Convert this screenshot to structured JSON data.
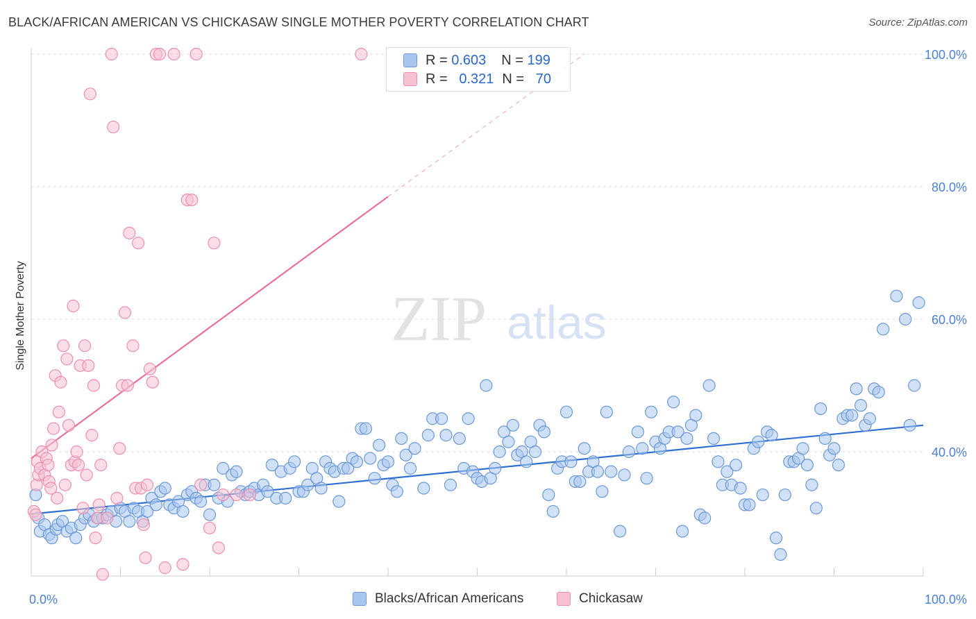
{
  "title": "BLACK/AFRICAN AMERICAN VS CHICKASAW SINGLE MOTHER POVERTY CORRELATION CHART",
  "source": "Source: ZipAtlas.com",
  "watermark": {
    "zip": "ZIP",
    "atlas": "atlas"
  },
  "colors": {
    "blue_fill": "#a9c6ef",
    "blue_stroke": "#6c98d8",
    "blue_line": "#2f6fd0",
    "pink_fill": "#f6c1d1",
    "pink_stroke": "#ec8fae",
    "pink_line": "#e8719a",
    "axis_text": "#4a7fd6",
    "grid": "#dddddd"
  },
  "legend": {
    "series1": {
      "r_label": "R =",
      "r_value": "0.603",
      "n_label": "N =",
      "n_value": "199"
    },
    "series2": {
      "r_label": "R =",
      "r_value": "0.321",
      "n_label": "N =",
      "n_value": "70"
    }
  },
  "bottom_legend": {
    "series1": "Blacks/African Americans",
    "series2": "Chickasaw"
  },
  "chart_data": {
    "type": "scatter",
    "title": "BLACK/AFRICAN AMERICAN VS CHICKASAW SINGLE MOTHER POVERTY CORRELATION CHART",
    "xlabel": "",
    "ylabel": "Single Mother Poverty",
    "xlim": [
      0,
      100
    ],
    "ylim": [
      21,
      102
    ],
    "x_tick_labels": [
      "0.0%",
      "100.0%"
    ],
    "y_tick_labels": [
      "40.0%",
      "60.0%",
      "80.0%",
      "100.0%"
    ],
    "y_ticks": [
      40,
      60,
      80,
      100
    ],
    "grid": true,
    "legend_position": "top-center",
    "series": [
      {
        "name": "Blacks/African Americans",
        "r": 0.603,
        "n": 199,
        "trend": {
          "x": [
            0,
            100
          ],
          "y": [
            30.6,
            44.0
          ]
        },
        "points": [
          [
            0.5,
            33.5
          ],
          [
            0.8,
            30
          ],
          [
            1,
            28
          ],
          [
            1.5,
            29
          ],
          [
            2,
            27.5
          ],
          [
            2.3,
            27
          ],
          [
            2.8,
            28.3
          ],
          [
            3,
            29
          ],
          [
            3.5,
            29.5
          ],
          [
            4,
            28
          ],
          [
            4.5,
            28.5
          ],
          [
            5,
            27
          ],
          [
            5.5,
            29
          ],
          [
            6,
            30
          ],
          [
            6.5,
            30.5
          ],
          [
            7,
            29.5
          ],
          [
            7.5,
            30
          ],
          [
            8,
            30
          ],
          [
            8.5,
            30.5
          ],
          [
            9,
            31
          ],
          [
            9.5,
            29.5
          ],
          [
            10,
            31.5
          ],
          [
            10.5,
            31
          ],
          [
            11,
            29.5
          ],
          [
            11.5,
            31.5
          ],
          [
            12,
            31
          ],
          [
            12.5,
            29.5
          ],
          [
            13,
            31
          ],
          [
            13.5,
            33
          ],
          [
            14,
            32
          ],
          [
            14.5,
            34
          ],
          [
            15,
            34.5
          ],
          [
            15.5,
            32
          ],
          [
            16,
            31.5
          ],
          [
            16.5,
            32.5
          ],
          [
            17,
            31
          ],
          [
            17.5,
            33.5
          ],
          [
            18,
            34
          ],
          [
            18.5,
            33
          ],
          [
            19,
            32.5
          ],
          [
            19.5,
            35
          ],
          [
            20,
            30.5
          ],
          [
            20.5,
            35
          ],
          [
            21,
            33
          ],
          [
            21.5,
            37.5
          ],
          [
            22,
            32.5
          ],
          [
            22.5,
            36.5
          ],
          [
            23,
            37
          ],
          [
            23.5,
            34
          ],
          [
            24,
            33.5
          ],
          [
            24.5,
            34
          ],
          [
            25,
            34.5
          ],
          [
            25.5,
            33.5
          ],
          [
            26,
            35
          ],
          [
            26.5,
            34
          ],
          [
            27,
            38
          ],
          [
            27.5,
            33
          ],
          [
            28,
            37
          ],
          [
            28.5,
            33
          ],
          [
            29,
            37.5
          ],
          [
            29.5,
            38.5
          ],
          [
            30,
            34
          ],
          [
            30.5,
            34
          ],
          [
            31,
            35
          ],
          [
            31.5,
            37.5
          ],
          [
            32,
            36
          ],
          [
            32.5,
            34.5
          ],
          [
            33,
            38.5
          ],
          [
            33.5,
            37.5
          ],
          [
            34,
            37
          ],
          [
            34.5,
            32.5
          ],
          [
            35,
            37.5
          ],
          [
            35.5,
            37.5
          ],
          [
            36,
            39
          ],
          [
            36.5,
            38.5
          ],
          [
            37,
            43.5
          ],
          [
            37.5,
            43.5
          ],
          [
            38,
            39
          ],
          [
            38.5,
            36
          ],
          [
            39,
            41
          ],
          [
            39.5,
            38
          ],
          [
            40,
            38.5
          ],
          [
            40.5,
            35
          ],
          [
            41,
            34
          ],
          [
            41.5,
            42
          ],
          [
            42,
            39.5
          ],
          [
            42.5,
            37.5
          ],
          [
            43,
            40.5
          ],
          [
            44,
            34.5
          ],
          [
            44.5,
            42.5
          ],
          [
            45,
            45
          ],
          [
            46,
            45
          ],
          [
            46.5,
            42.5
          ],
          [
            47,
            35
          ],
          [
            48,
            42
          ],
          [
            48.5,
            37.5
          ],
          [
            49,
            45
          ],
          [
            49.5,
            37
          ],
          [
            50,
            36
          ],
          [
            50.5,
            35.5
          ],
          [
            51,
            50
          ],
          [
            51.5,
            36
          ],
          [
            52,
            37.5
          ],
          [
            52.5,
            40
          ],
          [
            53,
            43
          ],
          [
            53.5,
            41.5
          ],
          [
            54,
            44
          ],
          [
            54.5,
            39.5
          ],
          [
            55,
            40
          ],
          [
            55.5,
            38.5
          ],
          [
            56,
            41.5
          ],
          [
            56.5,
            40
          ],
          [
            57,
            44
          ],
          [
            57.5,
            43
          ],
          [
            58,
            33.5
          ],
          [
            58.5,
            31
          ],
          [
            59,
            37.5
          ],
          [
            59.5,
            38.5
          ],
          [
            60,
            46
          ],
          [
            60.5,
            38.5
          ],
          [
            61,
            35.5
          ],
          [
            61.5,
            35.5
          ],
          [
            62,
            40.5
          ],
          [
            62.5,
            37
          ],
          [
            63,
            38.5
          ],
          [
            63.5,
            37
          ],
          [
            64,
            34
          ],
          [
            64.5,
            46
          ],
          [
            65,
            37
          ],
          [
            66,
            28
          ],
          [
            66.5,
            36.5
          ],
          [
            67,
            40
          ],
          [
            68,
            43
          ],
          [
            68.5,
            40.5
          ],
          [
            69,
            36
          ],
          [
            69.5,
            46
          ],
          [
            70,
            41.5
          ],
          [
            70.5,
            40.5
          ],
          [
            71,
            42
          ],
          [
            71.5,
            43
          ],
          [
            72,
            47.5
          ],
          [
            72.5,
            43
          ],
          [
            73,
            28
          ],
          [
            73.5,
            42
          ],
          [
            74,
            44
          ],
          [
            74.5,
            45.5
          ],
          [
            75,
            30.5
          ],
          [
            75.5,
            30
          ],
          [
            76,
            50
          ],
          [
            76.5,
            42
          ],
          [
            77,
            38.5
          ],
          [
            77.5,
            35
          ],
          [
            78,
            37
          ],
          [
            78.5,
            35
          ],
          [
            79,
            38
          ],
          [
            79.5,
            34.5
          ],
          [
            80,
            32
          ],
          [
            80.5,
            32
          ],
          [
            81,
            40.5
          ],
          [
            81.5,
            41.5
          ],
          [
            82,
            33.5
          ],
          [
            82.5,
            43
          ],
          [
            83,
            42.5
          ],
          [
            83.5,
            27
          ],
          [
            84,
            24.5
          ],
          [
            84.5,
            33.5
          ],
          [
            85,
            38.5
          ],
          [
            85.5,
            38.5
          ],
          [
            86,
            39
          ],
          [
            86.5,
            40.5
          ],
          [
            87,
            38
          ],
          [
            87.5,
            35
          ],
          [
            88,
            31.5
          ],
          [
            88.5,
            46.5
          ],
          [
            89,
            42
          ],
          [
            89.5,
            39.5
          ],
          [
            90,
            40.5
          ],
          [
            90.5,
            38
          ],
          [
            91,
            45
          ],
          [
            91.5,
            45.5
          ],
          [
            92,
            45.5
          ],
          [
            92.5,
            49.5
          ],
          [
            93,
            47
          ],
          [
            93.5,
            44
          ],
          [
            94,
            45
          ],
          [
            94.5,
            49.5
          ],
          [
            95,
            49
          ],
          [
            95.5,
            58.5
          ],
          [
            97,
            63.5
          ],
          [
            98,
            60
          ],
          [
            98.5,
            44
          ],
          [
            99,
            50
          ],
          [
            99.5,
            62.5
          ]
        ]
      },
      {
        "name": "Chickasaw",
        "r": 0.321,
        "n": 70,
        "trend": {
          "x": [
            0,
            40
          ],
          "y": [
            39.0,
            78.5
          ],
          "dash_to": {
            "x": 62,
            "y": 100
          }
        },
        "points": [
          [
            0.3,
            31
          ],
          [
            0.5,
            30.5
          ],
          [
            0.6,
            35
          ],
          [
            0.7,
            38.5
          ],
          [
            0.8,
            36.5
          ],
          [
            1,
            37.5
          ],
          [
            1.2,
            40
          ],
          [
            1.5,
            36.5
          ],
          [
            1.7,
            39
          ],
          [
            1.9,
            38
          ],
          [
            2,
            35.5
          ],
          [
            2.2,
            34.5
          ],
          [
            2.3,
            41
          ],
          [
            2.5,
            43.5
          ],
          [
            2.7,
            51.5
          ],
          [
            2.9,
            33
          ],
          [
            3.1,
            46
          ],
          [
            3.3,
            50.5
          ],
          [
            3.6,
            56
          ],
          [
            3.8,
            35
          ],
          [
            4,
            54
          ],
          [
            4.2,
            44
          ],
          [
            4.5,
            38
          ],
          [
            4.7,
            62
          ],
          [
            4.9,
            38.5
          ],
          [
            5.1,
            40
          ],
          [
            5.3,
            38
          ],
          [
            5.5,
            53
          ],
          [
            5.8,
            31.5
          ],
          [
            6,
            56
          ],
          [
            6.2,
            36.5
          ],
          [
            6.4,
            53
          ],
          [
            6.6,
            94
          ],
          [
            6.8,
            42.5
          ],
          [
            7,
            50
          ],
          [
            7.2,
            27
          ],
          [
            7.4,
            30
          ],
          [
            7.6,
            32
          ],
          [
            7.8,
            38
          ],
          [
            8,
            21.5
          ],
          [
            8.5,
            30
          ],
          [
            9,
            100
          ],
          [
            9.2,
            89
          ],
          [
            9.6,
            33
          ],
          [
            9.9,
            40.5
          ],
          [
            10.2,
            50
          ],
          [
            10.5,
            61
          ],
          [
            10.8,
            50
          ],
          [
            11,
            73
          ],
          [
            11.4,
            56
          ],
          [
            11.7,
            34.5
          ],
          [
            12,
            71.5
          ],
          [
            12.3,
            34.5
          ],
          [
            12.6,
            29
          ],
          [
            12.8,
            24
          ],
          [
            13,
            35
          ],
          [
            13.3,
            52.5
          ],
          [
            13.6,
            50.5
          ],
          [
            14,
            100
          ],
          [
            14.4,
            100
          ],
          [
            15,
            22.5
          ],
          [
            16,
            100
          ],
          [
            17,
            23
          ],
          [
            17.5,
            78
          ],
          [
            18,
            78
          ],
          [
            18.5,
            100
          ],
          [
            19,
            35
          ],
          [
            20,
            28.5
          ],
          [
            20.5,
            71.5
          ],
          [
            21,
            25.5
          ],
          [
            21.5,
            33.5
          ],
          [
            23,
            33.5
          ],
          [
            24.5,
            33.5
          ],
          [
            37,
            100
          ]
        ]
      }
    ]
  }
}
